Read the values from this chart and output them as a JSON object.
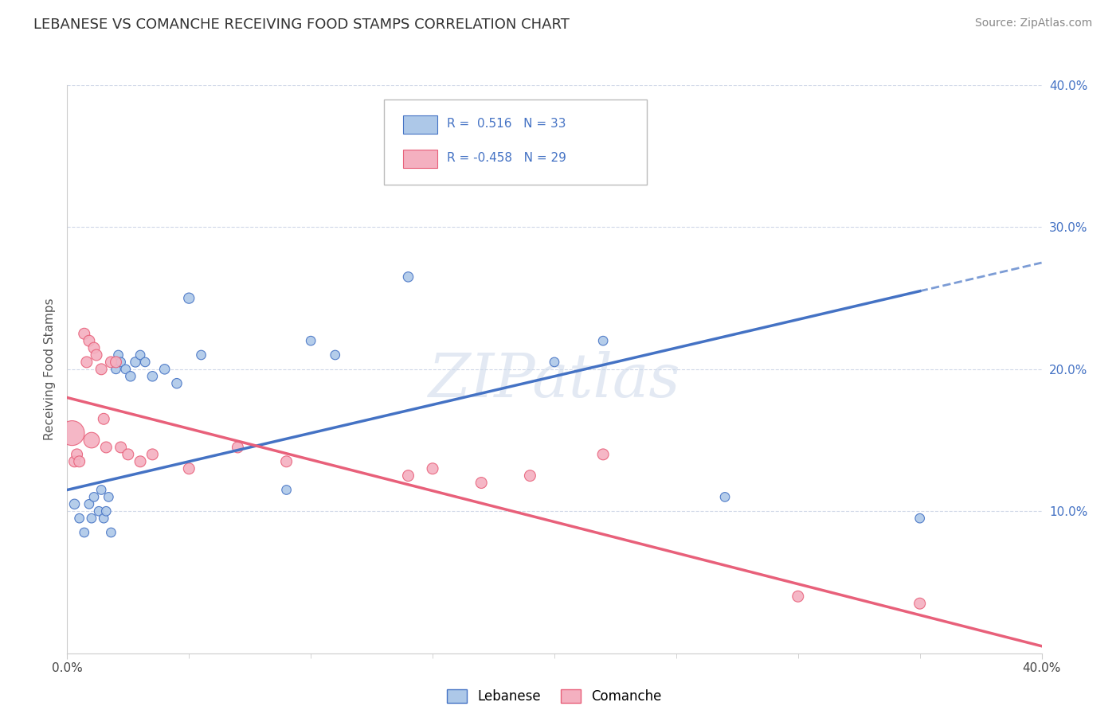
{
  "title": "LEBANESE VS COMANCHE RECEIVING FOOD STAMPS CORRELATION CHART",
  "source": "Source: ZipAtlas.com",
  "ylabel": "Receiving Food Stamps",
  "blue_color": "#adc8e8",
  "blue_line_color": "#4472c4",
  "pink_color": "#f4b0c0",
  "pink_line_color": "#e8607a",
  "watermark": "ZIPatlas",
  "watermark_color": "#ccd8ea",
  "background_color": "#ffffff",
  "grid_color": "#d0d8e8",
  "xlim": [
    0,
    40
  ],
  "ylim": [
    0,
    40
  ],
  "lebanese_x": [
    0.3,
    0.5,
    0.7,
    0.9,
    1.0,
    1.1,
    1.3,
    1.4,
    1.5,
    1.6,
    1.7,
    1.8,
    2.0,
    2.1,
    2.2,
    2.4,
    2.6,
    2.8,
    3.0,
    3.2,
    3.5,
    4.0,
    4.5,
    5.0,
    5.5,
    9.0,
    10.0,
    11.0,
    14.0,
    22.0,
    27.0,
    35.0,
    20.0
  ],
  "lebanese_y": [
    10.5,
    9.5,
    8.5,
    10.5,
    9.5,
    11.0,
    10.0,
    11.5,
    9.5,
    10.0,
    11.0,
    8.5,
    20.0,
    21.0,
    20.5,
    20.0,
    19.5,
    20.5,
    21.0,
    20.5,
    19.5,
    20.0,
    19.0,
    25.0,
    21.0,
    11.5,
    22.0,
    21.0,
    26.5,
    22.0,
    11.0,
    9.5,
    20.5
  ],
  "lebanese_sizes": [
    80,
    70,
    70,
    70,
    70,
    70,
    70,
    70,
    70,
    70,
    70,
    70,
    70,
    70,
    70,
    70,
    80,
    80,
    70,
    70,
    80,
    80,
    80,
    90,
    70,
    70,
    70,
    70,
    80,
    70,
    70,
    70,
    70
  ],
  "comanche_x": [
    0.2,
    0.3,
    0.4,
    0.5,
    0.7,
    0.8,
    0.9,
    1.0,
    1.1,
    1.2,
    1.4,
    1.5,
    1.6,
    1.8,
    2.0,
    2.2,
    2.5,
    3.0,
    3.5,
    5.0,
    7.0,
    9.0,
    14.0,
    15.0,
    17.0,
    19.0,
    22.0,
    30.0,
    35.0
  ],
  "comanche_y": [
    15.5,
    13.5,
    14.0,
    13.5,
    22.5,
    20.5,
    22.0,
    15.0,
    21.5,
    21.0,
    20.0,
    16.5,
    14.5,
    20.5,
    20.5,
    14.5,
    14.0,
    13.5,
    14.0,
    13.0,
    14.5,
    13.5,
    12.5,
    13.0,
    12.0,
    12.5,
    14.0,
    4.0,
    3.5
  ],
  "comanche_sizes": [
    500,
    100,
    100,
    100,
    100,
    100,
    100,
    200,
    100,
    100,
    100,
    100,
    100,
    100,
    100,
    100,
    100,
    100,
    100,
    100,
    100,
    100,
    100,
    100,
    100,
    100,
    100,
    100,
    100
  ],
  "leb_line_x0": 0,
  "leb_line_y0": 11.5,
  "leb_line_x1": 35,
  "leb_line_y1": 25.5,
  "leb_dash_x0": 35,
  "leb_dash_x1": 40,
  "com_line_x0": 0,
  "com_line_y0": 18.0,
  "com_line_x1": 40,
  "com_line_y1": 0.5
}
